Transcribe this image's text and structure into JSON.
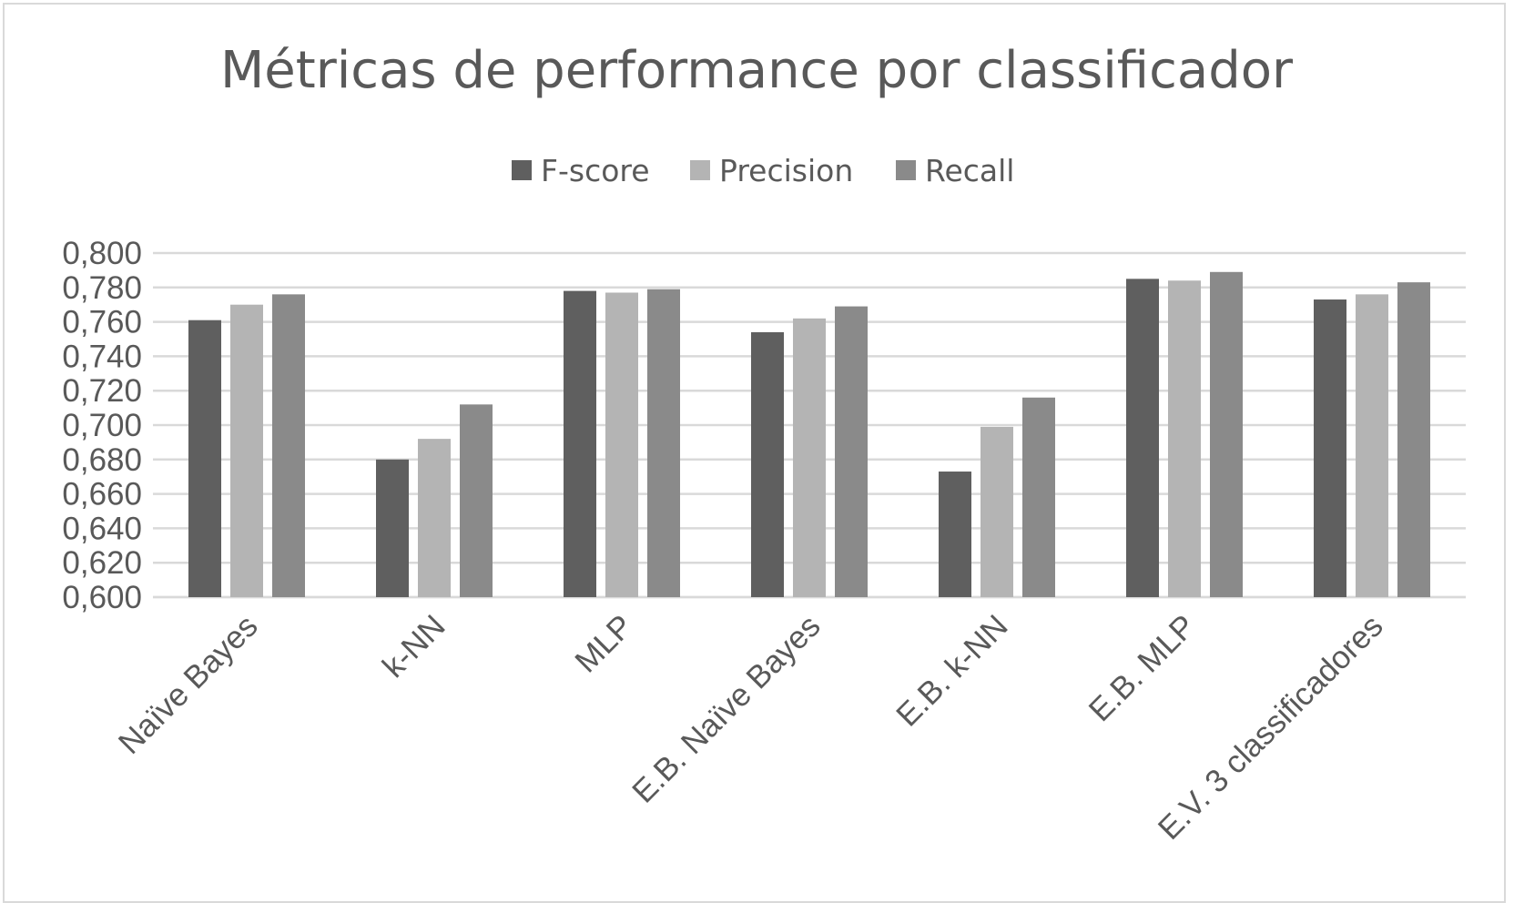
{
  "chart_data": {
    "type": "bar",
    "title": "Métricas de performance por classificador",
    "categories": [
      "Naïve Bayes",
      "k-NN",
      "MLP",
      "E.B. Naïve Bayes",
      "E.B. k-NN",
      "E.B. MLP",
      "E.V. 3 classificadores"
    ],
    "series": [
      {
        "name": "F-score",
        "color": "#5f5f5f",
        "values": [
          0.761,
          0.68,
          0.778,
          0.754,
          0.673,
          0.785,
          0.773
        ]
      },
      {
        "name": "Precision",
        "color": "#b4b4b4",
        "values": [
          0.77,
          0.692,
          0.777,
          0.762,
          0.699,
          0.784,
          0.776
        ]
      },
      {
        "name": "Recall",
        "color": "#8a8a8a",
        "values": [
          0.776,
          0.712,
          0.779,
          0.769,
          0.716,
          0.789,
          0.783
        ]
      }
    ],
    "ylim": [
      0.6,
      0.8
    ],
    "yticks": [
      "0,600",
      "0,620",
      "0,640",
      "0,660",
      "0,680",
      "0,700",
      "0,720",
      "0,740",
      "0,760",
      "0,780",
      "0,800"
    ],
    "grid": true,
    "legend_position": "top",
    "xlabel": "",
    "ylabel": ""
  }
}
